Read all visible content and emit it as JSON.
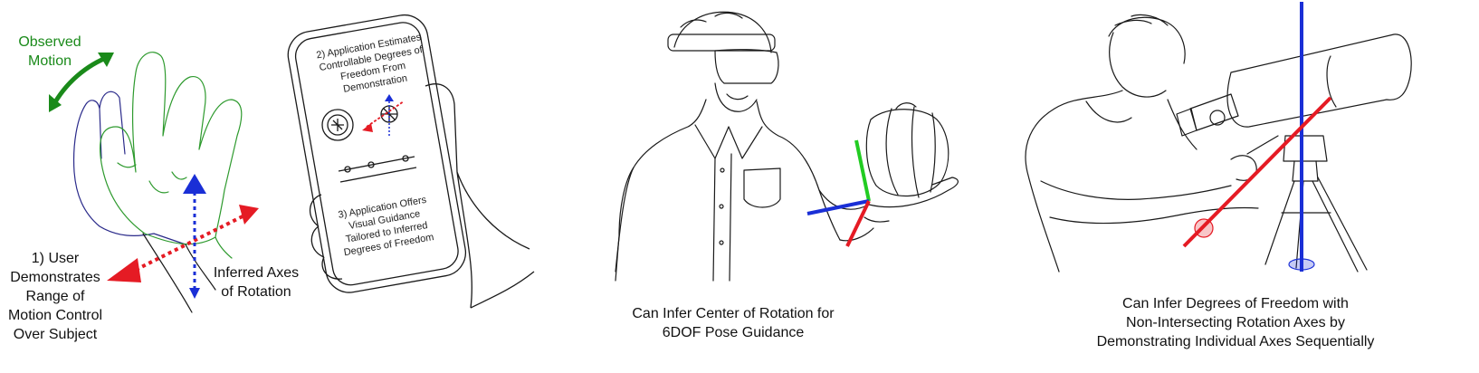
{
  "panel1": {
    "observed_motion": [
      "Observed",
      "Motion"
    ],
    "user_demonstrates": [
      "1) User",
      "Demonstrates",
      "Range of",
      "Motion Control",
      "Over Subject"
    ],
    "inferred_axes": [
      "Inferred Axes",
      "of Rotation"
    ],
    "phone_step2": [
      "2) Application Estimates",
      "Controllable Degrees of",
      "Freedom From",
      "Demonstration"
    ],
    "phone_step3": [
      "3) Application Offers",
      "Visual Guidance",
      "Tailored to Inferred",
      "Degrees of Freedom"
    ]
  },
  "panel2": {
    "caption": [
      "Can Infer Center of Rotation for",
      "6DOF Pose Guidance"
    ]
  },
  "panel3": {
    "caption": [
      "Can Infer Degrees of Freedom with",
      "Non-Intersecting Rotation Axes by",
      "Demonstrating Individual Axes Sequentially"
    ]
  },
  "colors": {
    "axis_red": "#e51b24",
    "axis_blue": "#1a2fd6",
    "axis_green": "#22cc22",
    "motion_green": "#1a8a1a",
    "line": "#1a1a1a"
  }
}
